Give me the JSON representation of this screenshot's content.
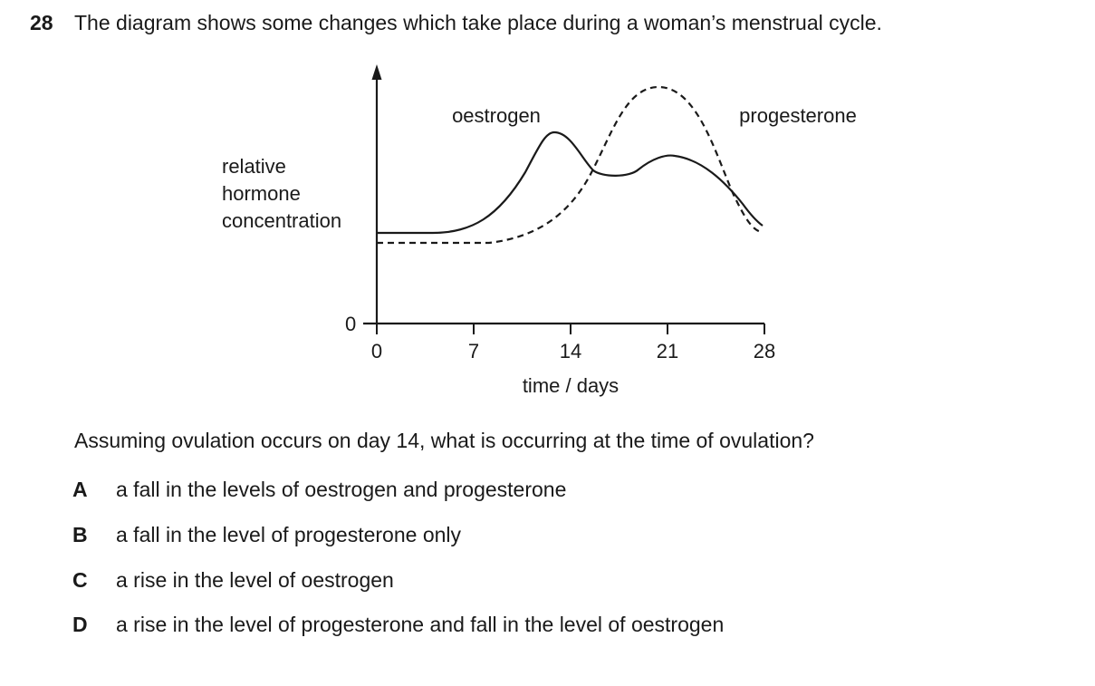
{
  "question": {
    "number": "28",
    "stem": "The diagram shows some changes which take place during a woman’s menstrual cycle.",
    "prompt": "Assuming ovulation occurs on day 14, what is occurring at the time of ovulation?"
  },
  "diagram": {
    "y_label_lines": [
      "relative",
      "hormone",
      "concentration"
    ],
    "y_zero_label": "0",
    "x_tick_labels": [
      "0",
      "7",
      "14",
      "21",
      "28"
    ],
    "x_label": "time / days",
    "curve_labels": {
      "oestrogen": "oestrogen",
      "progesterone": "progesterone"
    }
  },
  "options": [
    {
      "letter": "A",
      "text": "a fall in the levels of oestrogen and progesterone"
    },
    {
      "letter": "B",
      "text": "a fall in the level of progesterone only"
    },
    {
      "letter": "C",
      "text": "a rise in the level of oestrogen"
    },
    {
      "letter": "D",
      "text": "a rise in the level of progesterone and fall in the level of oestrogen"
    }
  ]
}
